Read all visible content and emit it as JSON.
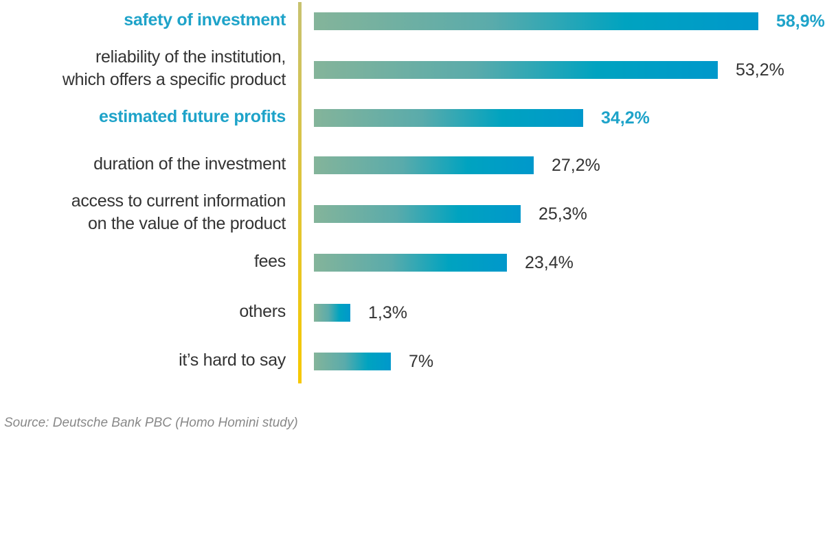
{
  "chart_data": {
    "type": "bar",
    "orientation": "horizontal",
    "categories": [
      [
        "safety of investment"
      ],
      [
        "reliability of the institution,",
        "which offers a specific product"
      ],
      [
        "estimated future profits"
      ],
      [
        "duration of the investment"
      ],
      [
        "access to current information",
        "on the value of the product"
      ],
      [
        "fees"
      ],
      [
        "others"
      ],
      [
        "it’s hard to say"
      ]
    ],
    "values": [
      58.9,
      53.2,
      34.2,
      27.2,
      25.3,
      23.4,
      1.3,
      7
    ],
    "value_labels": [
      "58,9%",
      "53,2%",
      "34,2%",
      "27,2%",
      "25,3%",
      "23,4%",
      "1,3%",
      "7%"
    ],
    "highlighted": [
      true,
      false,
      true,
      false,
      false,
      false,
      false,
      false
    ],
    "unit": "%",
    "colors": {
      "bar_start": "#84b49a",
      "bar_end": "#0098cb",
      "highlight_text": "#1ea3c9",
      "text": "#333333"
    }
  },
  "source": "Source: Deutsche Bank PBC (Homo Homini study)"
}
